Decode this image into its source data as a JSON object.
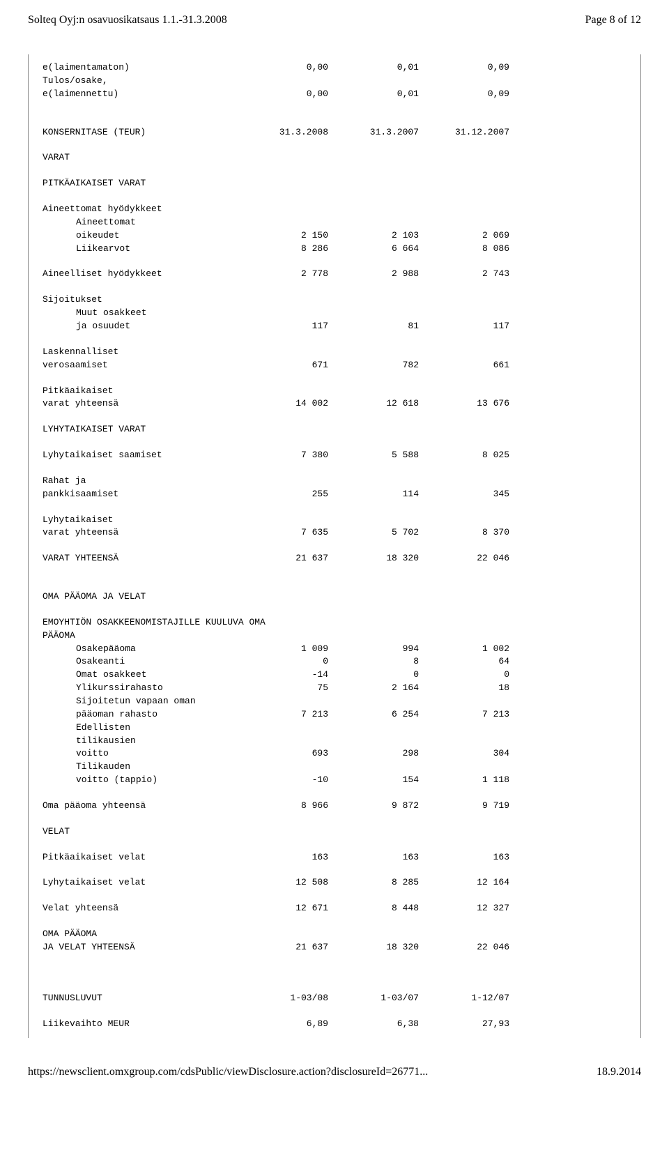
{
  "header": {
    "left": "Solteq Oyj:n osavuosikatsaus 1.1.-31.3.2008",
    "right": "Page 8 of 12"
  },
  "footer": {
    "url": "https://newsclient.omxgroup.com/cdsPublic/viewDisclosure.action?disclosureId=26771...",
    "date": "18.9.2014"
  },
  "rows": [
    {
      "label": "e(laimentamaton)",
      "c1": "0,00",
      "c2": "0,01",
      "c3": "0,09",
      "indent": false
    },
    {
      "label": "Tulos/osake,",
      "c1": "",
      "c2": "",
      "c3": "",
      "indent": false
    },
    {
      "label": "e(laimennettu)",
      "c1": "0,00",
      "c2": "0,01",
      "c3": "0,09",
      "indent": false
    },
    {
      "blank": true
    },
    {
      "blank": true
    },
    {
      "label": "KONSERNITASE (TEUR)",
      "c1": "31.3.2008",
      "c2": "31.3.2007",
      "c3": "31.12.2007",
      "indent": false
    },
    {
      "blank": true
    },
    {
      "label": "VARAT",
      "c1": "",
      "c2": "",
      "c3": "",
      "indent": false
    },
    {
      "blank": true
    },
    {
      "label": "PITKÄAIKAISET VARAT",
      "c1": "",
      "c2": "",
      "c3": "",
      "indent": false
    },
    {
      "blank": true
    },
    {
      "label": "Aineettomat hyödykkeet",
      "c1": "",
      "c2": "",
      "c3": "",
      "indent": false
    },
    {
      "label": "Aineettomat",
      "c1": "",
      "c2": "",
      "c3": "",
      "indent": true
    },
    {
      "label": "oikeudet",
      "c1": "2 150",
      "c2": "2 103",
      "c3": "2 069",
      "indent": true
    },
    {
      "label": "Liikearvot",
      "c1": "8 286",
      "c2": "6 664",
      "c3": "8 086",
      "indent": true
    },
    {
      "blank": true
    },
    {
      "label": "Aineelliset hyödykkeet",
      "c1": "2 778",
      "c2": "2 988",
      "c3": "2 743",
      "indent": false
    },
    {
      "blank": true
    },
    {
      "label": "Sijoitukset",
      "c1": "",
      "c2": "",
      "c3": "",
      "indent": false
    },
    {
      "label": "Muut osakkeet",
      "c1": "",
      "c2": "",
      "c3": "",
      "indent": true
    },
    {
      "label": "ja osuudet",
      "c1": "117",
      "c2": "81",
      "c3": "117",
      "indent": true
    },
    {
      "blank": true
    },
    {
      "label": "Laskennalliset",
      "c1": "",
      "c2": "",
      "c3": "",
      "indent": false
    },
    {
      "label": "verosaamiset",
      "c1": "671",
      "c2": "782",
      "c3": "661",
      "indent": false
    },
    {
      "blank": true
    },
    {
      "label": "Pitkäaikaiset",
      "c1": "",
      "c2": "",
      "c3": "",
      "indent": false
    },
    {
      "label": "varat yhteensä",
      "c1": "14 002",
      "c2": "12 618",
      "c3": "13 676",
      "indent": false
    },
    {
      "blank": true
    },
    {
      "label": "LYHYTAIKAISET VARAT",
      "c1": "",
      "c2": "",
      "c3": "",
      "indent": false
    },
    {
      "blank": true
    },
    {
      "label": "Lyhytaikaiset saamiset",
      "c1": "7 380",
      "c2": "5 588",
      "c3": "8 025",
      "indent": false
    },
    {
      "blank": true
    },
    {
      "label": "Rahat ja",
      "c1": "",
      "c2": "",
      "c3": "",
      "indent": false
    },
    {
      "label": "pankkisaamiset",
      "c1": "255",
      "c2": "114",
      "c3": "345",
      "indent": false
    },
    {
      "blank": true
    },
    {
      "label": "Lyhytaikaiset",
      "c1": "",
      "c2": "",
      "c3": "",
      "indent": false
    },
    {
      "label": "varat yhteensä",
      "c1": "7 635",
      "c2": "5 702",
      "c3": "8 370",
      "indent": false
    },
    {
      "blank": true
    },
    {
      "label": "VARAT YHTEENSÄ",
      "c1": "21 637",
      "c2": "18 320",
      "c3": "22 046",
      "indent": false
    },
    {
      "blank": true
    },
    {
      "blank": true
    },
    {
      "label": "OMA PÄÄOMA JA VELAT",
      "c1": "",
      "c2": "",
      "c3": "",
      "indent": false
    },
    {
      "blank": true
    },
    {
      "label": "EMOYHTIÖN OSAKKEENOMISTAJILLE KUULUVA OMA",
      "c1": "",
      "c2": "",
      "c3": "",
      "indent": false,
      "wide": true
    },
    {
      "label": "PÄÄOMA",
      "c1": "",
      "c2": "",
      "c3": "",
      "indent": false
    },
    {
      "label": "Osakepääoma",
      "c1": "1 009",
      "c2": "994",
      "c3": "1 002",
      "indent": true
    },
    {
      "label": "Osakeanti",
      "c1": "0",
      "c2": "8",
      "c3": "64",
      "indent": true
    },
    {
      "label": "Omat osakkeet",
      "c1": "-14",
      "c2": "0",
      "c3": "0",
      "indent": true
    },
    {
      "label": "Ylikurssirahasto",
      "c1": "75",
      "c2": "2 164",
      "c3": "18",
      "indent": true
    },
    {
      "label": "Sijoitetun vapaan oman",
      "c1": "",
      "c2": "",
      "c3": "",
      "indent": true
    },
    {
      "label": "pääoman rahasto",
      "c1": "7 213",
      "c2": "6 254",
      "c3": "7 213",
      "indent": true
    },
    {
      "label": "Edellisten",
      "c1": "",
      "c2": "",
      "c3": "",
      "indent": true
    },
    {
      "label": "tilikausien",
      "c1": "",
      "c2": "",
      "c3": "",
      "indent": true
    },
    {
      "label": "voitto",
      "c1": "693",
      "c2": "298",
      "c3": "304",
      "indent": true
    },
    {
      "label": "Tilikauden",
      "c1": "",
      "c2": "",
      "c3": "",
      "indent": true
    },
    {
      "label": "voitto (tappio)",
      "c1": "-10",
      "c2": "154",
      "c3": "1 118",
      "indent": true
    },
    {
      "blank": true
    },
    {
      "label": "Oma pääoma yhteensä",
      "c1": "8 966",
      "c2": "9 872",
      "c3": "9 719",
      "indent": false
    },
    {
      "blank": true
    },
    {
      "label": "VELAT",
      "c1": "",
      "c2": "",
      "c3": "",
      "indent": false
    },
    {
      "blank": true
    },
    {
      "label": "Pitkäaikaiset velat",
      "c1": "163",
      "c2": "163",
      "c3": "163",
      "indent": false
    },
    {
      "blank": true
    },
    {
      "label": "Lyhytaikaiset velat",
      "c1": "12 508",
      "c2": "8 285",
      "c3": "12 164",
      "indent": false
    },
    {
      "blank": true
    },
    {
      "label": "Velat yhteensä",
      "c1": "12 671",
      "c2": "8 448",
      "c3": "12 327",
      "indent": false
    },
    {
      "blank": true
    },
    {
      "label": "OMA PÄÄOMA",
      "c1": "",
      "c2": "",
      "c3": "",
      "indent": false
    },
    {
      "label": "JA VELAT YHTEENSÄ",
      "c1": "21 637",
      "c2": "18 320",
      "c3": "22 046",
      "indent": false
    },
    {
      "blank": true
    },
    {
      "blank": true
    },
    {
      "blank": true
    },
    {
      "label": "TUNNUSLUVUT",
      "c1": "1-03/08",
      "c2": "1-03/07",
      "c3": "1-12/07",
      "indent": false
    },
    {
      "blank": true
    },
    {
      "label": "Liikevaihto MEUR",
      "c1": "6,89",
      "c2": "6,38",
      "c3": "27,93",
      "indent": false
    }
  ]
}
